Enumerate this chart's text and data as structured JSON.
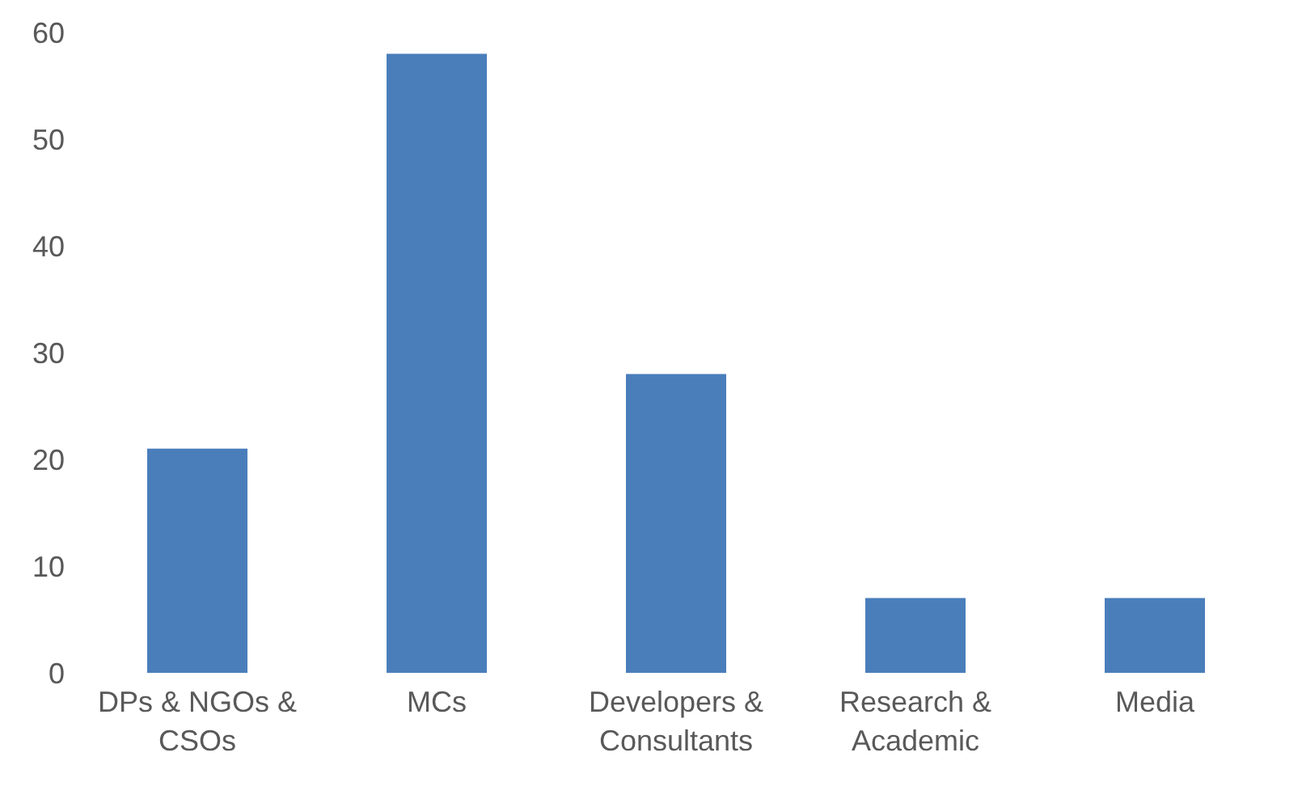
{
  "chart_data": {
    "type": "bar",
    "categories": [
      "DPs & NGOs & CSOs",
      "MCs",
      "Developers & Consultants",
      "Research & Academic",
      "Media"
    ],
    "values": [
      21,
      58,
      28,
      7,
      7
    ],
    "color": "#4a7ebb",
    "ylim": [
      0,
      60
    ],
    "yticks": [
      0,
      10,
      20,
      30,
      40,
      50,
      60
    ],
    "grid": false
  }
}
